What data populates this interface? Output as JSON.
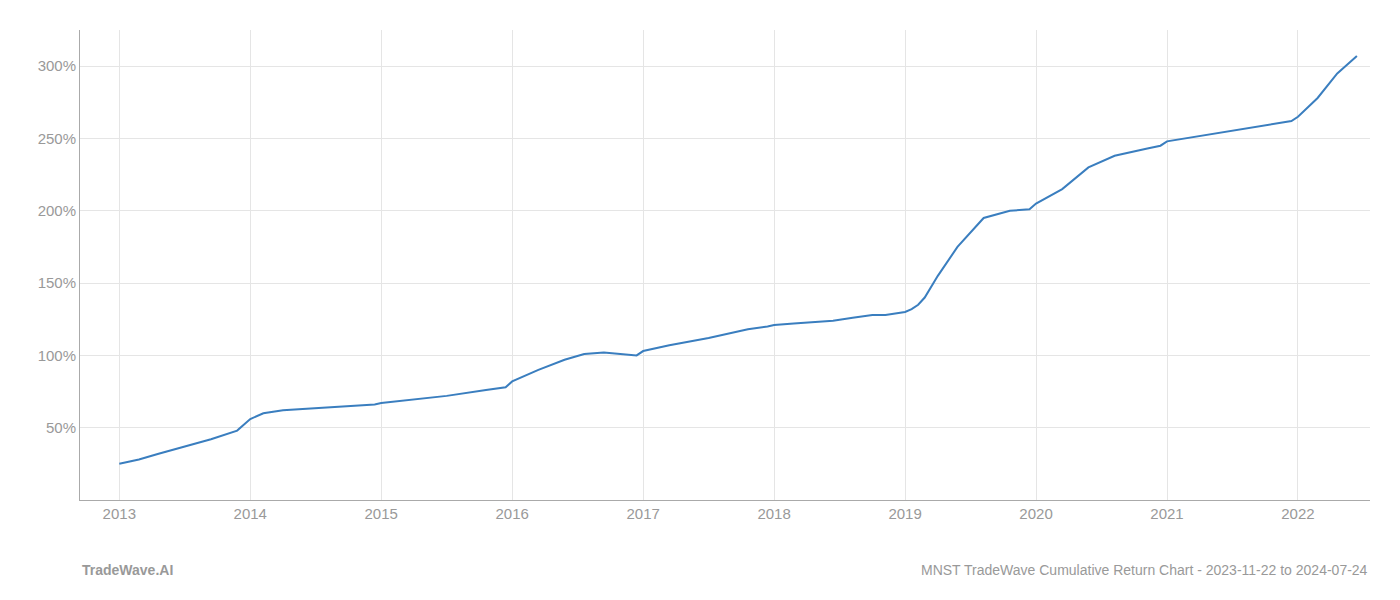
{
  "chart_data": {
    "type": "line",
    "title": "MNST TradeWave Cumulative Return Chart - 2023-11-22 to 2024-07-24",
    "annotations": [
      "TradeWave.AI"
    ],
    "x": [
      2013.0,
      2013.15,
      2013.3,
      2013.5,
      2013.7,
      2013.9,
      2014.0,
      2014.1,
      2014.25,
      2014.4,
      2014.6,
      2014.8,
      2014.95,
      2015.0,
      2015.2,
      2015.5,
      2015.8,
      2015.95,
      2016.0,
      2016.2,
      2016.4,
      2016.55,
      2016.7,
      2016.85,
      2016.95,
      2017.0,
      2017.2,
      2017.5,
      2017.8,
      2017.95,
      2018.0,
      2018.15,
      2018.3,
      2018.45,
      2018.6,
      2018.75,
      2018.85,
      2018.92,
      2019.0,
      2019.05,
      2019.1,
      2019.15,
      2019.25,
      2019.4,
      2019.6,
      2019.8,
      2019.95,
      2020.0,
      2020.2,
      2020.4,
      2020.6,
      2020.85,
      2020.95,
      2021.0,
      2021.2,
      2021.4,
      2021.6,
      2021.8,
      2021.95,
      2022.0,
      2022.15,
      2022.3,
      2022.45
    ],
    "values": [
      25,
      28,
      32,
      37,
      42,
      48,
      56,
      60,
      62,
      63,
      64,
      65,
      66,
      67,
      69,
      72,
      76,
      78,
      82,
      90,
      97,
      101,
      102,
      101,
      100,
      103,
      107,
      112,
      118,
      120,
      121,
      122,
      123,
      124,
      126,
      128,
      128,
      129,
      130,
      132,
      135,
      140,
      155,
      175,
      195,
      200,
      201,
      205,
      215,
      230,
      238,
      243,
      245,
      248,
      251,
      254,
      257,
      260,
      262,
      265,
      278,
      295,
      307
    ],
    "color": "#3a7ebf",
    "xlim": [
      2012.7,
      2022.55
    ],
    "xticks": [
      2013,
      2014,
      2015,
      2016,
      2017,
      2018,
      2019,
      2020,
      2021,
      2022
    ],
    "ylim": [
      0,
      325
    ],
    "yticks": [
      {
        "value": 50,
        "label": "50%"
      },
      {
        "value": 100,
        "label": "100%"
      },
      {
        "value": 150,
        "label": "150%"
      },
      {
        "value": 200,
        "label": "200%"
      },
      {
        "value": 250,
        "label": "250%"
      },
      {
        "value": 300,
        "label": "300%"
      }
    ],
    "grid": true
  }
}
